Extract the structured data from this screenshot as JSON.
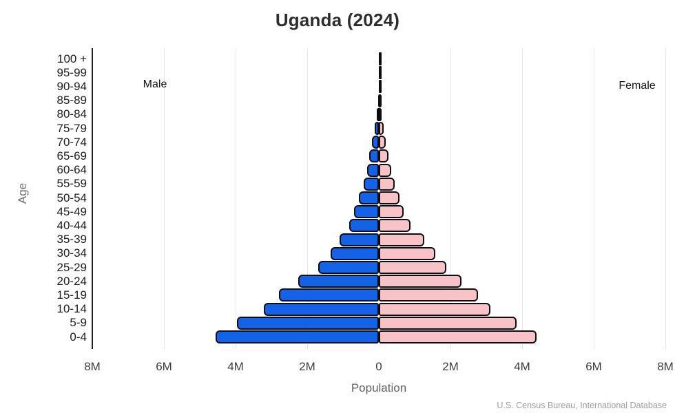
{
  "title": "Uganda (2024)",
  "labels": {
    "male": "Male",
    "female": "Female",
    "age_axis": "Age",
    "population_axis": "Population",
    "source": "U.S. Census Bureau, International Database"
  },
  "colors": {
    "male_fill": "#1362e8",
    "female_fill": "#f8c3c6",
    "bar_outline": "#0d0d12",
    "gridline": "#e4e4e4",
    "axis_line": "#1f1f1f"
  },
  "chart_data": {
    "type": "bar",
    "subtype": "population_pyramid",
    "title": "Uganda (2024)",
    "xlabel": "Population",
    "ylabel": "Age",
    "legend": [
      "Male",
      "Female"
    ],
    "legend_position": "inside-top",
    "grid": true,
    "x_tick_labels": [
      "8M",
      "6M",
      "4M",
      "2M",
      "0",
      "2M",
      "4M",
      "6M",
      "8M"
    ],
    "x_tick_values_millions": [
      -8,
      -6,
      -4,
      -2,
      0,
      2,
      4,
      6,
      8
    ],
    "xlim_millions": [
      -8,
      8
    ],
    "age_groups_top_to_bottom": [
      "100 +",
      "95-99",
      "90-94",
      "85-89",
      "80-84",
      "75-79",
      "70-74",
      "65-69",
      "60-64",
      "55-59",
      "50-54",
      "45-49",
      "40-44",
      "35-39",
      "30-34",
      "25-29",
      "20-24",
      "15-19",
      "10-14",
      "5-9",
      "0-4"
    ],
    "series": [
      {
        "name": "Male",
        "side": "left",
        "color": "#1362e8",
        "values_millions": [
          0.001,
          0.003,
          0.008,
          0.02,
          0.05,
          0.12,
          0.19,
          0.26,
          0.33,
          0.42,
          0.55,
          0.69,
          0.83,
          1.09,
          1.35,
          1.7,
          2.25,
          2.78,
          3.21,
          3.96,
          4.56
        ]
      },
      {
        "name": "Female",
        "side": "right",
        "color": "#f8c3c6",
        "values_millions": [
          0.002,
          0.005,
          0.012,
          0.03,
          0.065,
          0.13,
          0.2,
          0.265,
          0.34,
          0.45,
          0.57,
          0.7,
          0.88,
          1.26,
          1.57,
          1.89,
          2.31,
          2.77,
          3.12,
          3.84,
          4.41
        ]
      }
    ],
    "source": "U.S. Census Bureau, International Database"
  }
}
